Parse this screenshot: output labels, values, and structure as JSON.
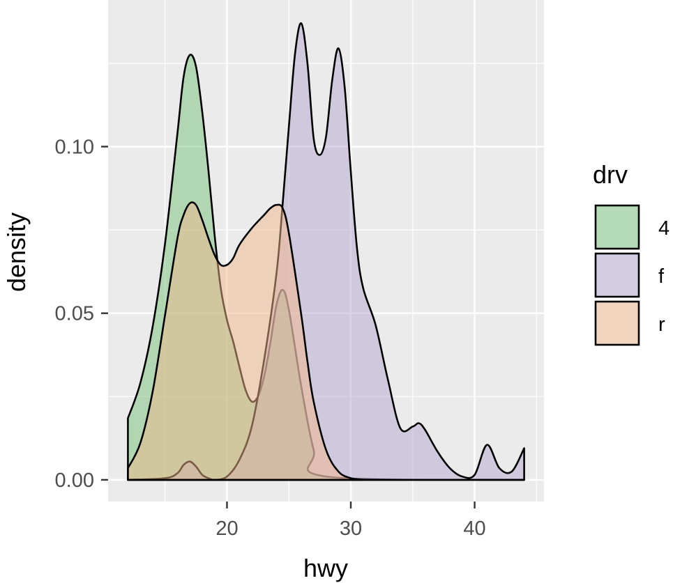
{
  "chart_data": {
    "type": "area",
    "xlabel": "hwy",
    "ylabel": "density",
    "xlim": [
      10.4,
      45.6
    ],
    "ylim": [
      -0.0065,
      0.144
    ],
    "x_ticks": [
      20,
      30,
      40
    ],
    "x_tick_labels": [
      "20",
      "30",
      "40"
    ],
    "y_ticks": [
      0.0,
      0.05,
      0.1
    ],
    "y_tick_labels": [
      "0.00",
      "0.05",
      "0.10"
    ],
    "grid": true,
    "legend": {
      "title": "drv",
      "position": "right",
      "entries": [
        "4",
        "f",
        "r"
      ]
    },
    "fill_opacity": 0.5,
    "series": [
      {
        "name": "4",
        "color": "#77C27A",
        "x": [
          12,
          13,
          14,
          15,
          16,
          16.5,
          17,
          17.5,
          18,
          18.5,
          19,
          19.5,
          20,
          20.5,
          21,
          21.5,
          22,
          22.5,
          23,
          23.5,
          24,
          24.5,
          25,
          26,
          27,
          28,
          44
        ],
        "y": [
          0.0185,
          0.029,
          0.046,
          0.071,
          0.104,
          0.121,
          0.1275,
          0.124,
          0.1105,
          0.093,
          0.0735,
          0.0575,
          0.048,
          0.0415,
          0.034,
          0.027,
          0.0235,
          0.025,
          0.031,
          0.041,
          0.0525,
          0.057,
          0.051,
          0.028,
          0.009,
          0.001,
          0.0
        ]
      },
      {
        "name": "f",
        "color": "#B6A8CF",
        "x": [
          12,
          15,
          16,
          16.5,
          17,
          17.5,
          18,
          18.5,
          19,
          20,
          21,
          22,
          23,
          24,
          24.5,
          25,
          25.5,
          26,
          26.5,
          27,
          27.5,
          28,
          28.5,
          29,
          29.5,
          30,
          30.5,
          31,
          32,
          33,
          34,
          35,
          35.5,
          36,
          37,
          38,
          39,
          40,
          41,
          42,
          43,
          44
        ],
        "y": [
          0.0,
          0.0005,
          0.002,
          0.0045,
          0.0055,
          0.004,
          0.0015,
          0.0005,
          0.0,
          0.001,
          0.006,
          0.016,
          0.036,
          0.062,
          0.083,
          0.106,
          0.128,
          0.137,
          0.125,
          0.1025,
          0.0975,
          0.103,
          0.12,
          0.1295,
          0.118,
          0.0925,
          0.0695,
          0.0575,
          0.0465,
          0.03,
          0.0155,
          0.016,
          0.017,
          0.015,
          0.0085,
          0.0035,
          0.001,
          0.0015,
          0.0105,
          0.0035,
          0.0025,
          0.0095
        ]
      },
      {
        "name": "r",
        "color": "#F2B88A",
        "x": [
          12,
          13,
          14,
          15,
          16,
          16.5,
          17,
          17.5,
          18,
          18.5,
          19,
          19.5,
          20,
          20.5,
          21,
          22,
          23,
          23.5,
          24,
          24.5,
          25,
          26,
          26.5,
          27,
          28,
          29,
          30,
          31
        ],
        "y": [
          0.0035,
          0.011,
          0.0265,
          0.0495,
          0.0725,
          0.0795,
          0.083,
          0.0825,
          0.078,
          0.0725,
          0.0675,
          0.0645,
          0.0645,
          0.0665,
          0.0705,
          0.0755,
          0.0795,
          0.0815,
          0.0825,
          0.0815,
          0.074,
          0.0495,
          0.0355,
          0.0235,
          0.009,
          0.0025,
          0.0005,
          0.0
        ]
      }
    ]
  }
}
